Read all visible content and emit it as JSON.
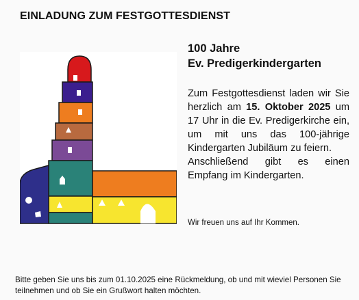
{
  "heading": "EINLADUNG ZUM FESTGOTTESDIENST",
  "title": {
    "line1": "100 Jahre",
    "line2": "Ev. Predigerkindergarten"
  },
  "invite": {
    "part1": "Zum Festgottesdienst laden wir Sie herzlich am ",
    "date": "15. Oktober 2025",
    "part2": " um 17 Uhr in die Ev. Predigerkirche ein, um mit uns das 100-jährige Kindergarten Jubiläum zu feiern."
  },
  "followup": "Anschließend gibt es einen Empfang im Kindergarten.",
  "regards": "Wir freuen uns auf Ihr Kommen.",
  "footer": "Bitte geben Sie uns bis zum 01.10.2025 eine Rückmeldung, ob und mit wieviel Personen Sie teilnehmen und ob Sie ein Grußwort halten möchten.",
  "colors": {
    "red": "#d7191c",
    "indigo": "#3b1e8e",
    "orange": "#ee7d1f",
    "brown": "#b86a3f",
    "purple": "#7b4a96",
    "teal": "#2a8278",
    "yellow": "#f7e52f",
    "navy": "#2e2f8a"
  }
}
